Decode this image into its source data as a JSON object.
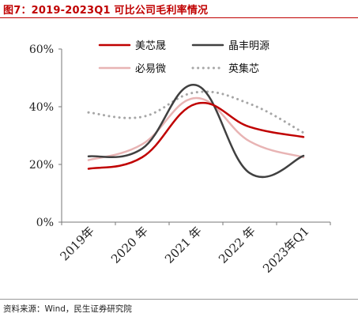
{
  "figure": {
    "title": "图7：2019-2023Q1 可比公司毛利率情况",
    "source": "资料来源：Wind，民生证券研究院"
  },
  "chart_data": {
    "type": "line",
    "title": "图7：2019-2023Q1 可比公司毛利率情况",
    "categories": [
      "2019年",
      "2020 年",
      "2021 年",
      "2022 年",
      "2023年Q1"
    ],
    "ylim": [
      0,
      60
    ],
    "yticks": [
      0,
      20,
      40,
      60
    ],
    "ytick_labels": [
      "0%",
      "20%",
      "40%",
      "60%"
    ],
    "grid": false,
    "legend_position": "top",
    "series": [
      {
        "name": "美芯晟",
        "values": [
          18.5,
          22.5,
          41.0,
          33.0,
          29.5
        ],
        "color": "#c00000",
        "style": "solid"
      },
      {
        "name": "晶丰明源",
        "values": [
          22.8,
          25.5,
          47.5,
          17.0,
          23.0
        ],
        "color": "#404040",
        "style": "solid"
      },
      {
        "name": "必易微",
        "values": [
          21.5,
          27.0,
          43.0,
          28.0,
          22.5
        ],
        "color": "#e8b4b4",
        "style": "solid"
      },
      {
        "name": "英集芯",
        "values": [
          38.0,
          36.5,
          45.0,
          41.0,
          31.0
        ],
        "color": "#a6a6a6",
        "style": "dotted"
      }
    ]
  }
}
